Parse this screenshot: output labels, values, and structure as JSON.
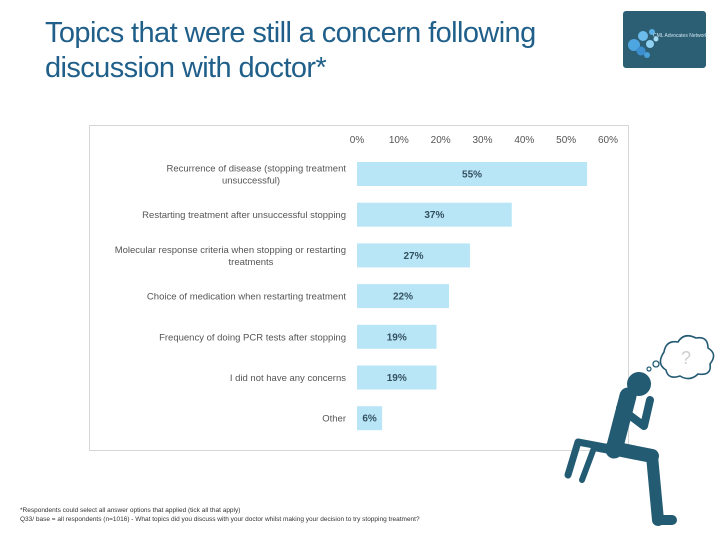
{
  "header": {
    "title_line1": "Topics that were still a concern following",
    "title_line2": "discussion with doctor*"
  },
  "logo": {
    "text": "CML Advocates Network"
  },
  "thought_bubble": {
    "symbol": "?"
  },
  "colors": {
    "bar": "#b9e6f7",
    "title": "#1f5f8a",
    "figure": "#235b73",
    "label": "#555555",
    "value": "#33505e"
  },
  "chart_data": {
    "type": "bar",
    "orientation": "horizontal",
    "title": "",
    "xlabel": "",
    "ylabel": "",
    "xlim": [
      0,
      60
    ],
    "axis_position": "top",
    "grid": false,
    "categories": [
      "Recurrence of disease (stopping treatment unsuccessful)",
      "Restarting treatment after unsuccessful stopping",
      "Molecular response criteria when stopping or restarting treatments",
      "Choice of medication when restarting treatment",
      "Frequency of doing PCR tests after stopping",
      "I did not have any concerns",
      "Other"
    ],
    "category_lines": [
      [
        "Recurrence of disease (stopping treatment",
        "unsuccessful)"
      ],
      [
        "Restarting treatment after unsuccessful stopping"
      ],
      [
        "Molecular response criteria when stopping or restarting",
        "treatments"
      ],
      [
        "Choice of medication when restarting treatment"
      ],
      [
        "Frequency of doing PCR tests after stopping"
      ],
      [
        "I did not have any concerns"
      ],
      [
        "Other"
      ]
    ],
    "values": [
      55,
      37,
      27,
      22,
      19,
      19,
      6
    ],
    "value_labels": [
      "55%",
      "37%",
      "27%",
      "22%",
      "19%",
      "19%",
      "6%"
    ],
    "ticks": [
      0,
      10,
      20,
      30,
      40,
      50,
      60
    ],
    "tick_labels": [
      "0%",
      "10%",
      "20%",
      "30%",
      "40%",
      "50%",
      "60%"
    ]
  },
  "footnote": {
    "line1": "*Respondents could select all answer options that applied (tick all that apply)",
    "line2": "Q33/ base = all respondents (n=1016) - What topics did you discuss with your doctor whilst making your decision to try stopping treatment?"
  }
}
